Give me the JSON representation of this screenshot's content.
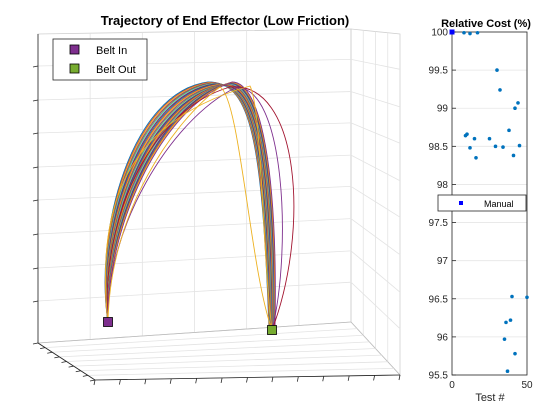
{
  "chart_data": [
    {
      "type": "line",
      "title": "Trajectory of End Effector (Low Friction)",
      "projection": "3d",
      "grid": true,
      "legend_position": "top-left",
      "legend": [
        {
          "name": "Belt In",
          "color": "#7e2f8e"
        },
        {
          "name": "Belt Out",
          "color": "#77ac30"
        }
      ],
      "series_colors": [
        "#0072bd",
        "#d95319",
        "#edb120",
        "#7e2f8e",
        "#77ac30",
        "#4dbeee",
        "#a2142f"
      ],
      "trajectory_count": 25
    },
    {
      "type": "scatter",
      "title": "Relative Cost (%)",
      "xlabel": "Test #",
      "ylabel": "",
      "xlim": [
        0,
        50
      ],
      "ylim": [
        95.5,
        100
      ],
      "xticks": [
        "0",
        "50"
      ],
      "yticks": [
        "95.5",
        "96",
        "96.5",
        "97",
        "97.5",
        "98",
        "98.5",
        "99",
        "99.5",
        "100"
      ],
      "grid": true,
      "legend_position": "middle",
      "legend": [
        {
          "name": "Manual",
          "color": "#0000ff"
        }
      ],
      "marker_color": "#0072bd",
      "manual_point": {
        "x": 0,
        "y": 100
      },
      "points": [
        {
          "x": 8,
          "y": 99.99
        },
        {
          "x": 12,
          "y": 99.98
        },
        {
          "x": 17,
          "y": 99.99
        },
        {
          "x": 30,
          "y": 99.5
        },
        {
          "x": 32,
          "y": 99.24
        },
        {
          "x": 44,
          "y": 99.07
        },
        {
          "x": 42,
          "y": 99.0
        },
        {
          "x": 38,
          "y": 98.71
        },
        {
          "x": 9,
          "y": 98.64
        },
        {
          "x": 10,
          "y": 98.66
        },
        {
          "x": 15,
          "y": 98.6
        },
        {
          "x": 25,
          "y": 98.6
        },
        {
          "x": 29,
          "y": 98.5
        },
        {
          "x": 34,
          "y": 98.49
        },
        {
          "x": 45,
          "y": 98.51
        },
        {
          "x": 12,
          "y": 98.48
        },
        {
          "x": 16,
          "y": 98.35
        },
        {
          "x": 41,
          "y": 98.38
        },
        {
          "x": 40,
          "y": 96.53
        },
        {
          "x": 50,
          "y": 96.52
        },
        {
          "x": 39,
          "y": 96.22
        },
        {
          "x": 36,
          "y": 96.19
        },
        {
          "x": 35,
          "y": 95.97
        },
        {
          "x": 42,
          "y": 95.78
        },
        {
          "x": 37,
          "y": 95.55
        }
      ]
    }
  ]
}
